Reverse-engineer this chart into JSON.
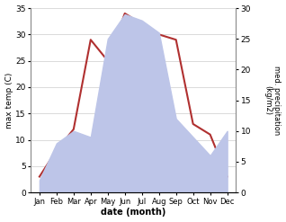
{
  "months": [
    "Jan",
    "Feb",
    "Mar",
    "Apr",
    "May",
    "Jun",
    "Jul",
    "Aug",
    "Sep",
    "Oct",
    "Nov",
    "Dec"
  ],
  "x": [
    0,
    1,
    2,
    3,
    4,
    5,
    6,
    7,
    8,
    9,
    10,
    11
  ],
  "temperature": [
    3,
    8,
    12,
    29,
    25,
    34,
    32,
    30,
    29,
    13,
    11,
    3
  ],
  "precipitation": [
    2,
    8,
    10,
    9,
    25,
    29,
    28,
    26,
    12,
    9,
    6,
    10
  ],
  "temp_color": "#b03030",
  "precip_fill_color": "#bdc5e8",
  "temp_ylim": [
    0,
    35
  ],
  "precip_ylim": [
    0,
    30
  ],
  "temp_yticks": [
    0,
    5,
    10,
    15,
    20,
    25,
    30,
    35
  ],
  "precip_yticks": [
    0,
    5,
    10,
    15,
    20,
    25,
    30
  ],
  "xlabel": "date (month)",
  "ylabel_left": "max temp (C)",
  "ylabel_right": "med. precipitation\n(kg/m2)",
  "background_color": "#ffffff"
}
